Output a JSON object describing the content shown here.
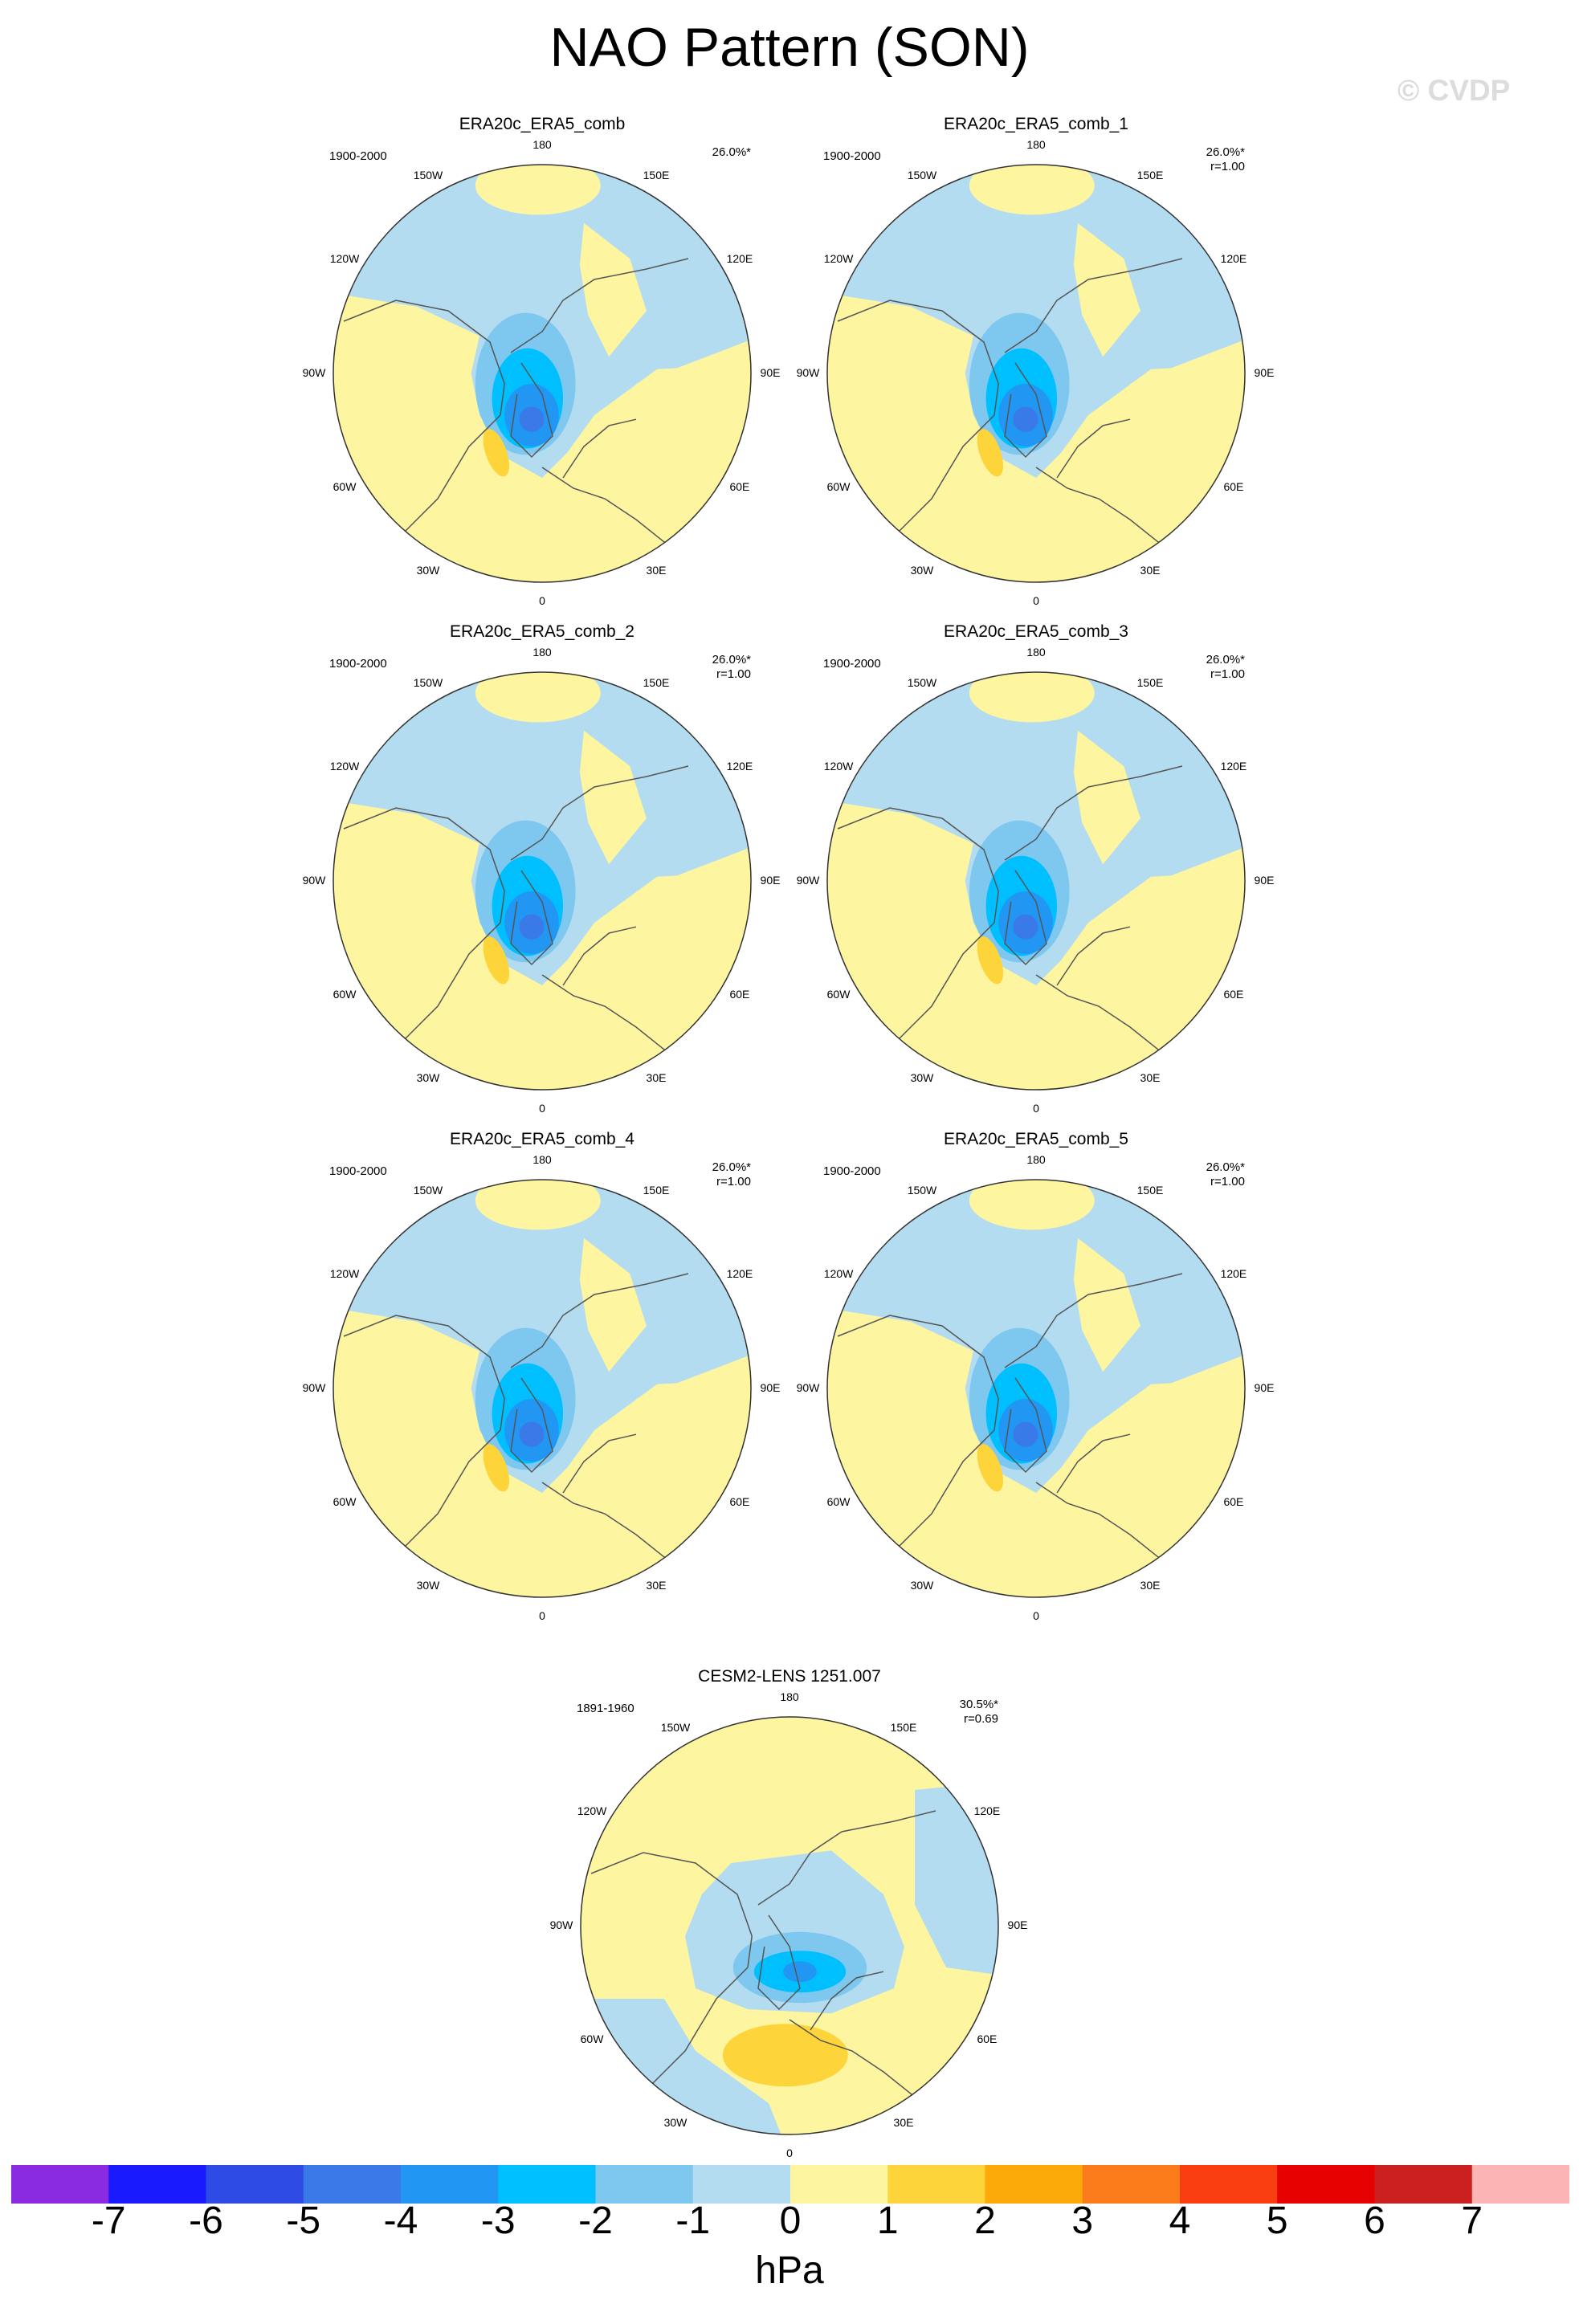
{
  "title": "NAO Pattern (SON)",
  "watermark": "© CVDP",
  "units": "hPa",
  "colors": {
    "land_yellow": "#fdf5a0",
    "ocean_blue": "#b3dcf0",
    "coast": "#555555"
  },
  "colorbar": {
    "colors": [
      "#8a2be2",
      "#1a1aff",
      "#2e4be6",
      "#3a7ae8",
      "#2196f3",
      "#00bfff",
      "#7ec8f0",
      "#b3dcf0",
      "#fdf5a0",
      "#fdd53a",
      "#fca90a",
      "#fb7b1a",
      "#fb3d12",
      "#e60000",
      "#cc1f1f",
      "#fdb4b4"
    ],
    "labels": [
      "-7",
      "-6",
      "-5",
      "-4",
      "-3",
      "-2",
      "-1",
      "0",
      "1",
      "2",
      "3",
      "4",
      "5",
      "6",
      "7"
    ]
  },
  "lon_labels": [
    "180",
    "150E",
    "120E",
    "90E",
    "60E",
    "30E",
    "0",
    "30W",
    "60W",
    "90W",
    "120W",
    "150W"
  ],
  "panels": [
    {
      "name": "ERA20c_ERA5_comb",
      "period": "1900-2000",
      "pct": "26.0%*",
      "r": ""
    },
    {
      "name": "ERA20c_ERA5_comb_1",
      "period": "1900-2000",
      "pct": "26.0%*",
      "r": "r=1.00"
    },
    {
      "name": "ERA20c_ERA5_comb_2",
      "period": "1900-2000",
      "pct": "26.0%*",
      "r": "r=1.00"
    },
    {
      "name": "ERA20c_ERA5_comb_3",
      "period": "1900-2000",
      "pct": "26.0%*",
      "r": "r=1.00"
    },
    {
      "name": "ERA20c_ERA5_comb_4",
      "period": "1900-2000",
      "pct": "26.0%*",
      "r": "r=1.00"
    },
    {
      "name": "ERA20c_ERA5_comb_5",
      "period": "1900-2000",
      "pct": "26.0%*",
      "r": "r=1.00"
    },
    {
      "name": "CESM2-LENS 1251.007",
      "period": "1891-1960",
      "pct": "30.5%*",
      "r": "r=0.69"
    }
  ]
}
